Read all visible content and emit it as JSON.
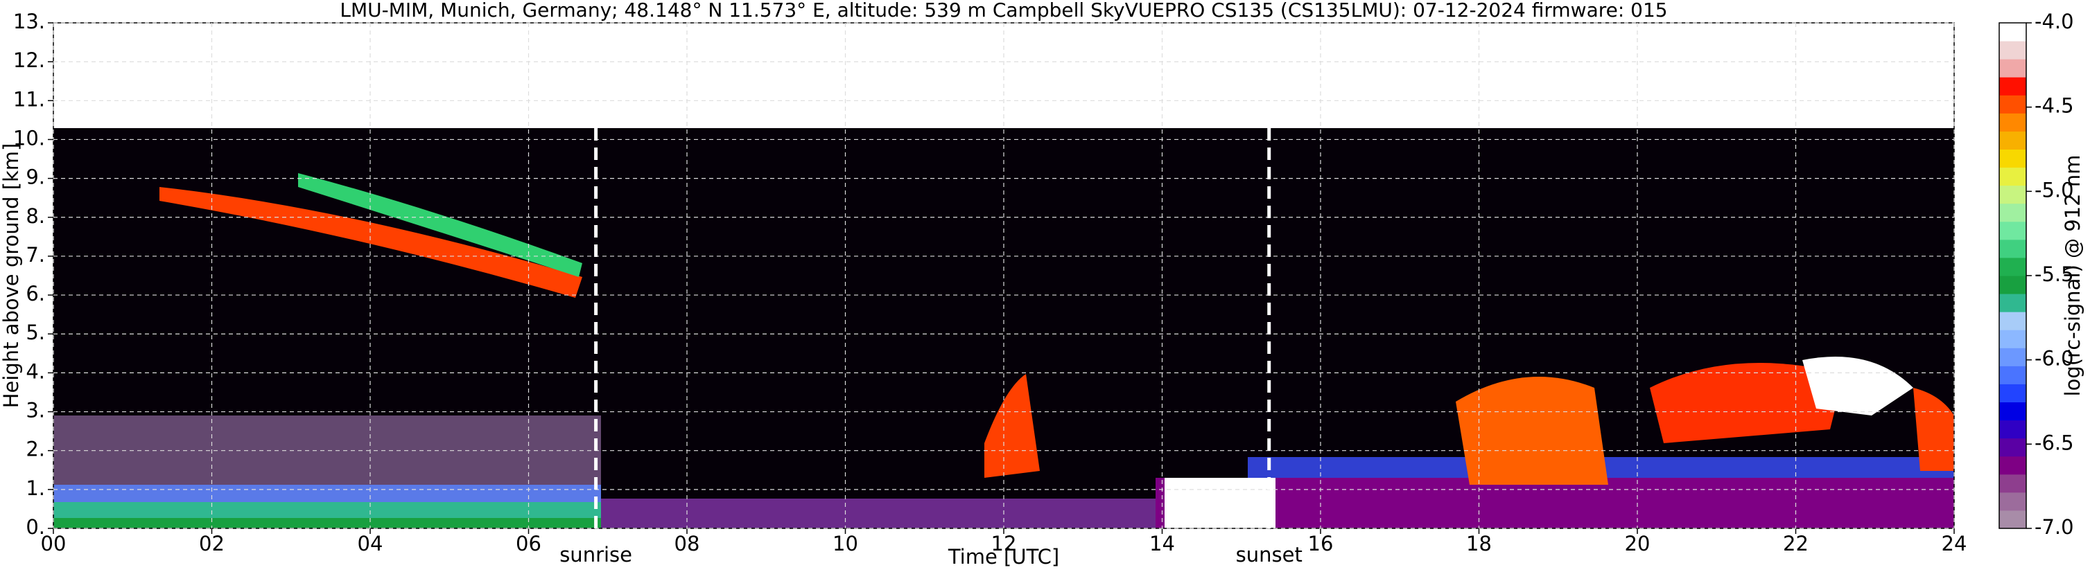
{
  "chart_data": {
    "type": "heatmap",
    "title": "LMU-MIM, Munich, Germany; 48.148° N 11.573° E, altitude: 539 m    Campbell SkyVUEPRO CS135 (CS135LMU): 07-12-2024    firmware: 015",
    "xlabel": "Time [UTC]",
    "ylabel": "Height above ground [km]",
    "xlim": [
      0,
      24
    ],
    "xticks": [
      {
        "value": 0,
        "label": "00"
      },
      {
        "value": 2,
        "label": "02"
      },
      {
        "value": 4,
        "label": "04"
      },
      {
        "value": 6,
        "label": "06"
      },
      {
        "value": 8,
        "label": "08"
      },
      10,
      12,
      14,
      16,
      18,
      20,
      22,
      24
    ],
    "ylim": [
      0,
      13
    ],
    "yticks": [
      {
        "value": 0,
        "label": "0."
      },
      {
        "value": 1,
        "label": "1."
      },
      {
        "value": 2,
        "label": "2."
      },
      {
        "value": 3,
        "label": "3."
      },
      {
        "value": 4,
        "label": "4."
      },
      {
        "value": 5,
        "label": "5."
      },
      {
        "value": 6,
        "label": "6."
      },
      {
        "value": 7,
        "label": "7."
      },
      {
        "value": 8,
        "label": "8."
      },
      {
        "value": 9,
        "label": "9."
      },
      {
        "value": 10,
        "label": "10."
      },
      {
        "value": 11,
        "label": "11."
      },
      {
        "value": 12,
        "label": "12."
      },
      {
        "value": 13,
        "label": "13."
      }
    ],
    "grid": true,
    "annotations": [
      {
        "text": "sunrise",
        "x": 6.85
      },
      {
        "text": "sunset",
        "x": 15.35
      }
    ],
    "colorbar": {
      "label": "log(rc-signal) @ 912 nm",
      "lim": [
        -7,
        -4
      ],
      "ticks": [
        {
          "value": -7,
          "label": "-7.0"
        },
        {
          "value": -6.5,
          "label": "-6.5"
        },
        {
          "value": -6,
          "label": "-6.0"
        },
        {
          "value": -5.5,
          "label": "-5.5"
        },
        {
          "value": -5,
          "label": "-5.0"
        },
        {
          "value": -4.5,
          "label": "-4.5"
        },
        {
          "value": -4,
          "label": "-4.0"
        }
      ],
      "colors": [
        "#a88ca8",
        "#9c6c9c",
        "#8e3e8e",
        "#7e0084",
        "#5a00a4",
        "#3000c4",
        "#0000e4",
        "#2244ff",
        "#4a74ff",
        "#6c98ff",
        "#8cb8ff",
        "#a8ccf8",
        "#30b890",
        "#18a040",
        "#20b050",
        "#40d080",
        "#70e8a0",
        "#a0f0a0",
        "#c8f480",
        "#e8f040",
        "#f8d800",
        "#f8b000",
        "#ff8800",
        "#ff5000",
        "#ff1000",
        "#f0a8a8",
        "#f0d4d4",
        "#ffffff"
      ]
    }
  }
}
